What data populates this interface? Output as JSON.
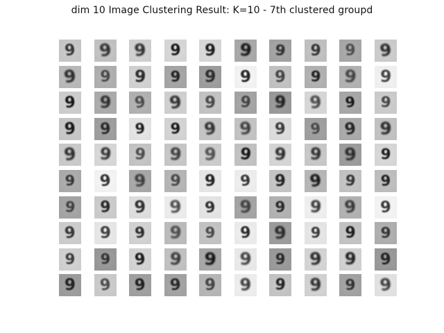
{
  "figure": {
    "title": "dim 10 Image Clustering Result: K=10 - 7th clustered groupd"
  },
  "thumbnails": {
    "rows": 10,
    "cols": 10,
    "depicted_digit": "9",
    "colors": {
      "tile_range": [
        "#9a9a9a",
        "#f2f2f2"
      ],
      "stroke": "#2a2a2a"
    }
  }
}
